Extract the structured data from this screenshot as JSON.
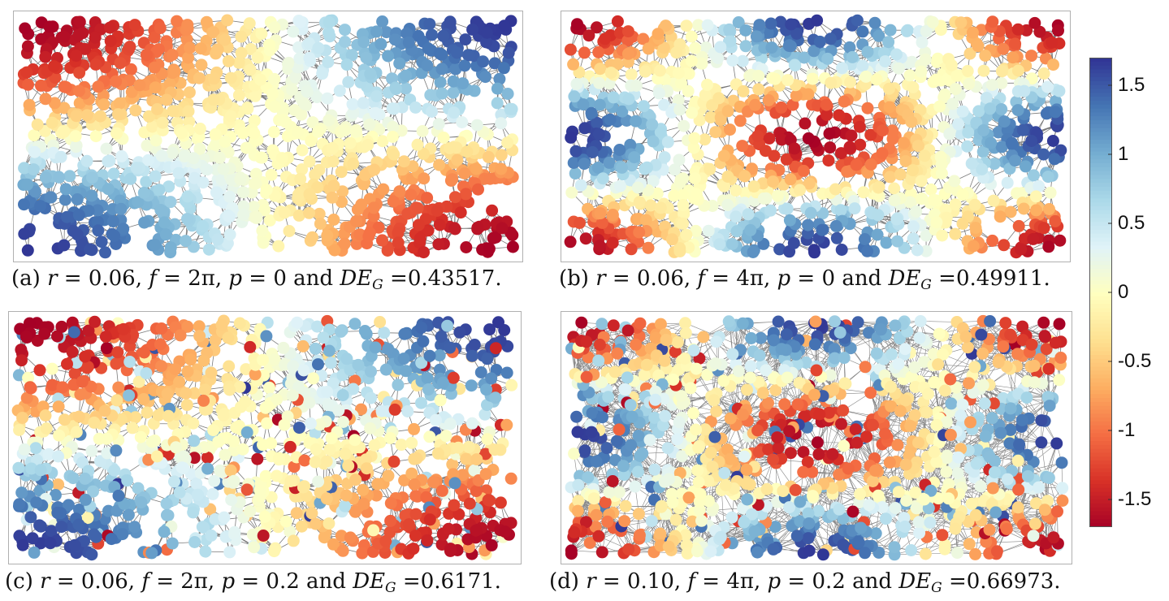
{
  "chart_data": [
    {
      "type": "scatter",
      "id": "a",
      "caption": {
        "label": "(a)",
        "r": "0.06",
        "f": "2π",
        "p": "0",
        "de": "0.43517",
        "connector": "and",
        "metric_symbol": "DE",
        "metric_sub": "G"
      },
      "field": {
        "freq": 1,
        "noise": 0,
        "dense": 0
      }
    },
    {
      "type": "scatter",
      "id": "b",
      "caption": {
        "label": "(b)",
        "r": "0.06",
        "f": "4π",
        "p": "0",
        "de": "0.49911",
        "connector": "and",
        "metric_symbol": "DE",
        "metric_sub": "G"
      },
      "field": {
        "freq": 2,
        "noise": 0,
        "dense": 0
      }
    },
    {
      "type": "scatter",
      "id": "c",
      "caption": {
        "label": "(c)",
        "r": "0.06",
        "f": "2π",
        "p": "0.2",
        "de": "0.6171",
        "connector": "and",
        "metric_symbol": "DE",
        "metric_sub": "G"
      },
      "field": {
        "freq": 1,
        "noise": 0.2,
        "dense": 0
      }
    },
    {
      "type": "scatter",
      "id": "d",
      "caption": {
        "label": "(d)",
        "r": "0.10",
        "f": "4π",
        "p": "0.2",
        "de": "0.66973",
        "connector": "and",
        "metric_symbol": "DE",
        "metric_sub": "G"
      },
      "field": {
        "freq": 2,
        "noise": 0.2,
        "dense": 1
      }
    }
  ],
  "colorbar": {
    "range": [
      -1.7,
      1.7
    ],
    "ticks": [
      "1.5",
      "1",
      "0.5",
      "0",
      "-0.5",
      "-1",
      "-1.5"
    ],
    "tick_values": [
      1.5,
      1,
      0.5,
      0,
      -0.5,
      -1,
      -1.5
    ],
    "colormap": [
      "#a50026",
      "#d73027",
      "#f46d43",
      "#fdae61",
      "#fee090",
      "#ffffbf",
      "#e0f3f8",
      "#abd9e9",
      "#74add1",
      "#4575b4",
      "#313695"
    ]
  }
}
